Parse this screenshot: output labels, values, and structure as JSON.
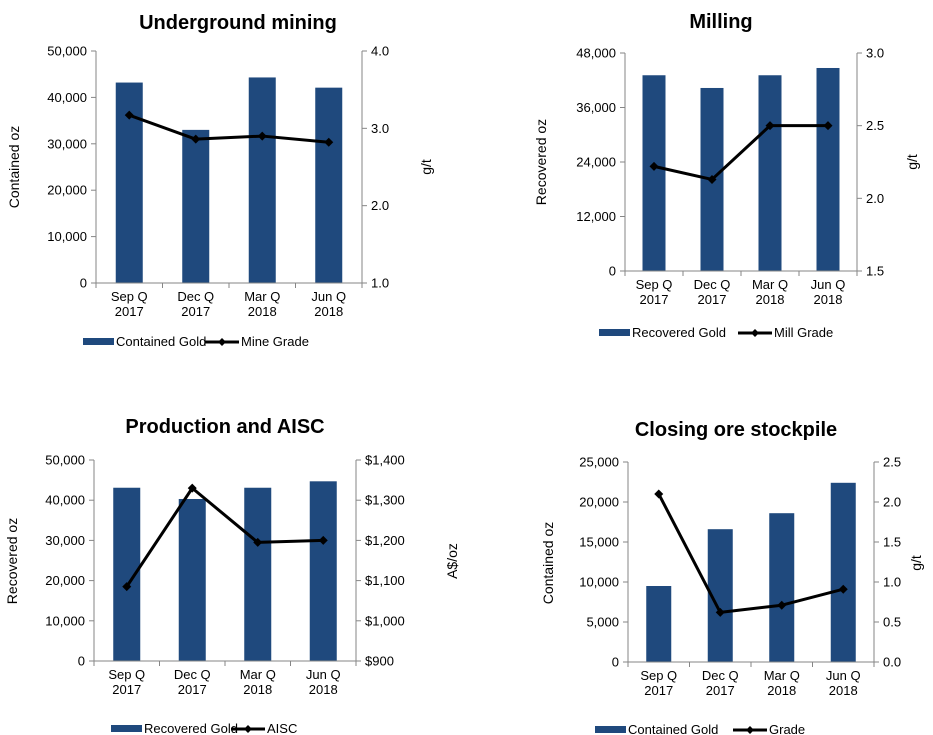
{
  "chart_data": [
    {
      "type": "bar",
      "title": "Underground mining",
      "categories": [
        [
          "Sep Q",
          "2017"
        ],
        [
          "Dec Q",
          "2017"
        ],
        [
          "Mar Q",
          "2018"
        ],
        [
          "Jun Q",
          "2018"
        ]
      ],
      "ylabel": "Contained oz",
      "y2label": "g/t",
      "ylim": [
        0,
        50000
      ],
      "y2lim": [
        1.0,
        4.0
      ],
      "yticks": [
        "0",
        "10,000",
        "20,000",
        "30,000",
        "40,000",
        "50,000"
      ],
      "y2ticks": [
        "1.0",
        "2.0",
        "3.0",
        "4.0"
      ],
      "bar_color": "#1F497D",
      "line_color": "#000000",
      "series": [
        {
          "name": "Contained Gold",
          "type": "bar",
          "axis": "left",
          "values": [
            43200,
            33000,
            44300,
            42100
          ]
        },
        {
          "name": "Mine Grade",
          "type": "line",
          "axis": "right",
          "values": [
            3.17,
            2.86,
            2.9,
            2.82
          ]
        }
      ],
      "legend": "bottom"
    },
    {
      "type": "bar",
      "title": "Milling",
      "categories": [
        [
          "Sep Q",
          "2017"
        ],
        [
          "Dec Q",
          "2017"
        ],
        [
          "Mar Q",
          "2018"
        ],
        [
          "Jun Q",
          "2018"
        ]
      ],
      "ylabel": "Recovered oz",
      "y2label": "g/t",
      "ylim": [
        0,
        48000
      ],
      "y2lim": [
        1.5,
        3.0
      ],
      "yticks": [
        "0",
        "12,000",
        "24,000",
        "36,000",
        "48,000"
      ],
      "y2ticks": [
        "1.5",
        "2.0",
        "2.5",
        "3.0"
      ],
      "bar_color": "#1F497D",
      "line_color": "#000000",
      "series": [
        {
          "name": "Recovered Gold",
          "type": "bar",
          "axis": "left",
          "values": [
            43100,
            40300,
            43100,
            44700
          ]
        },
        {
          "name": "Mill Grade",
          "type": "line",
          "axis": "right",
          "values": [
            2.22,
            2.13,
            2.5,
            2.5
          ]
        }
      ],
      "legend": "bottom"
    },
    {
      "type": "bar",
      "title": "Production and AISC",
      "categories": [
        [
          "Sep Q",
          "2017"
        ],
        [
          "Dec Q",
          "2017"
        ],
        [
          "Mar Q",
          "2018"
        ],
        [
          "Jun Q",
          "2018"
        ]
      ],
      "ylabel": "Recovered oz",
      "y2label": "A$/oz",
      "ylim": [
        0,
        50000
      ],
      "y2lim": [
        900,
        1400
      ],
      "yticks": [
        "0",
        "10,000",
        "20,000",
        "30,000",
        "40,000",
        "50,000"
      ],
      "y2ticks": [
        "$900",
        "$1,000",
        "$1,100",
        "$1,200",
        "$1,300",
        "$1,400"
      ],
      "bar_color": "#1F497D",
      "line_color": "#000000",
      "series": [
        {
          "name": "Recovered Gold",
          "type": "bar",
          "axis": "left",
          "values": [
            43100,
            40300,
            43100,
            44700
          ]
        },
        {
          "name": "AISC",
          "type": "line",
          "axis": "right",
          "values": [
            1085,
            1330,
            1195,
            1200
          ]
        }
      ],
      "legend": "bottom"
    },
    {
      "type": "bar",
      "title": "Closing ore stockpile",
      "categories": [
        [
          "Sep Q",
          "2017"
        ],
        [
          "Dec Q",
          "2017"
        ],
        [
          "Mar Q",
          "2018"
        ],
        [
          "Jun Q",
          "2018"
        ]
      ],
      "ylabel": "Contained oz",
      "y2label": "g/t",
      "ylim": [
        0,
        25000
      ],
      "y2lim": [
        0.0,
        2.5
      ],
      "yticks": [
        "0",
        "5,000",
        "10,000",
        "15,000",
        "20,000",
        "25,000"
      ],
      "y2ticks": [
        "0.0",
        "0.5",
        "1.0",
        "1.5",
        "2.0",
        "2.5"
      ],
      "bar_color": "#1F497D",
      "line_color": "#000000",
      "series": [
        {
          "name": "Contained Gold",
          "type": "bar",
          "axis": "left",
          "values": [
            9500,
            16600,
            18600,
            22400
          ]
        },
        {
          "name": "Grade",
          "type": "line",
          "axis": "right",
          "values": [
            2.1,
            0.62,
            0.71,
            0.91
          ]
        }
      ],
      "legend": "bottom"
    }
  ]
}
